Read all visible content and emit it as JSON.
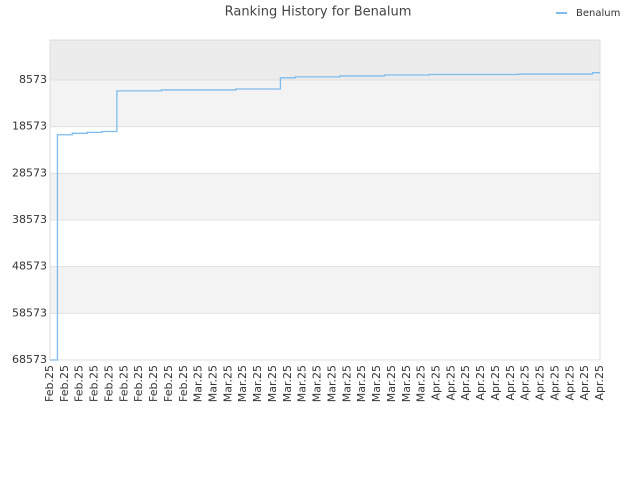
{
  "chart_data": {
    "type": "line",
    "title": "Ranking History for Benalum",
    "categories": [
      "Feb.25",
      "Feb.25",
      "Feb.25",
      "Feb.25",
      "Feb.25",
      "Feb.25",
      "Feb.25",
      "Feb.25",
      "Feb.25",
      "Feb.25",
      "Mar.25",
      "Mar.25",
      "Mar.25",
      "Mar.25",
      "Mar.25",
      "Mar.25",
      "Mar.25",
      "Mar.25",
      "Mar.25",
      "Mar.25",
      "Mar.25",
      "Mar.25",
      "Mar.25",
      "Mar.25",
      "Mar.25",
      "Mar.25",
      "Apr.25",
      "Apr.25",
      "Apr.25",
      "Apr.25",
      "Apr.25",
      "Apr.25",
      "Apr.25",
      "Apr.25",
      "Apr.25",
      "Apr.25",
      "Apr.25",
      "Apr.25"
    ],
    "series": [
      {
        "name": "Benalum",
        "color": "#7fbcec",
        "values": [
          68573,
          20300,
          20000,
          19800,
          19600,
          10900,
          10900,
          10900,
          10700,
          10700,
          10700,
          10700,
          10700,
          10500,
          10500,
          10500,
          8100,
          7900,
          7900,
          7900,
          7700,
          7700,
          7700,
          7500,
          7500,
          7500,
          7400,
          7400,
          7400,
          7400,
          7400,
          7400,
          7300,
          7300,
          7300,
          7300,
          7300,
          7000
        ]
      }
    ],
    "ylim": [
      68573,
      0
    ],
    "yticks": [
      8573,
      18573,
      28573,
      38573,
      48573,
      58573,
      68573
    ],
    "grid": true,
    "step": "middle",
    "legend": "top-right"
  }
}
